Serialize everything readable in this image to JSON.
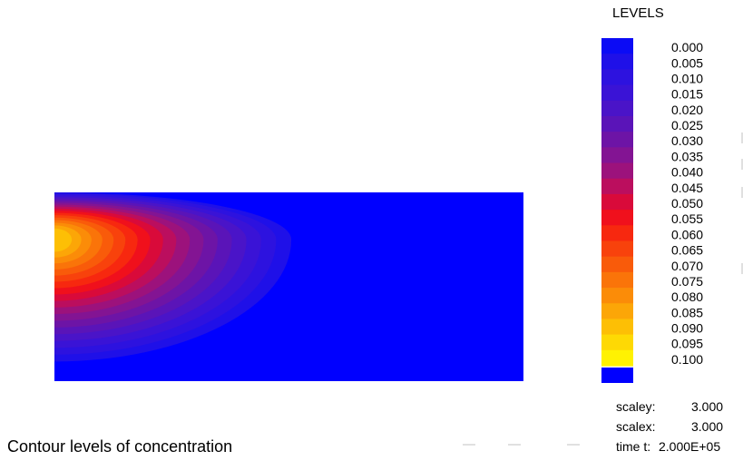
{
  "chart_data": {
    "type": "heatmap",
    "title": "Contour levels of concentration",
    "legend_title": "LEVELS",
    "levels": [
      "0.000",
      "0.005",
      "0.010",
      "0.015",
      "0.020",
      "0.025",
      "0.030",
      "0.035",
      "0.040",
      "0.045",
      "0.050",
      "0.055",
      "0.060",
      "0.065",
      "0.070",
      "0.075",
      "0.080",
      "0.085",
      "0.090",
      "0.095",
      "0.100"
    ],
    "level_colors": [
      "#0b0bf5",
      "#1f10e8",
      "#2d12df",
      "#3a13d6",
      "#4a14c8",
      "#5a14b8",
      "#6d14a6",
      "#831493",
      "#9c127c",
      "#bb0e5e",
      "#d90a3a",
      "#f0101c",
      "#f7280f",
      "#f8420c",
      "#f95b0a",
      "#fa7409",
      "#fb8c08",
      "#fca607",
      "#fdbf05",
      "#fed904",
      "#fff202"
    ],
    "below_min_color": "#0000ff",
    "domain": {
      "x": [
        0,
        1
      ],
      "y": [
        0,
        1
      ]
    },
    "peak": {
      "x": 0,
      "y": 0.75,
      "value": 0.09
    },
    "scaley_label": "scaley:",
    "scaley_value": "3.000",
    "scalex_label": "scalex:",
    "scalex_value": "3.000",
    "time_label": "time t:",
    "time_value": "2.000E+05"
  }
}
